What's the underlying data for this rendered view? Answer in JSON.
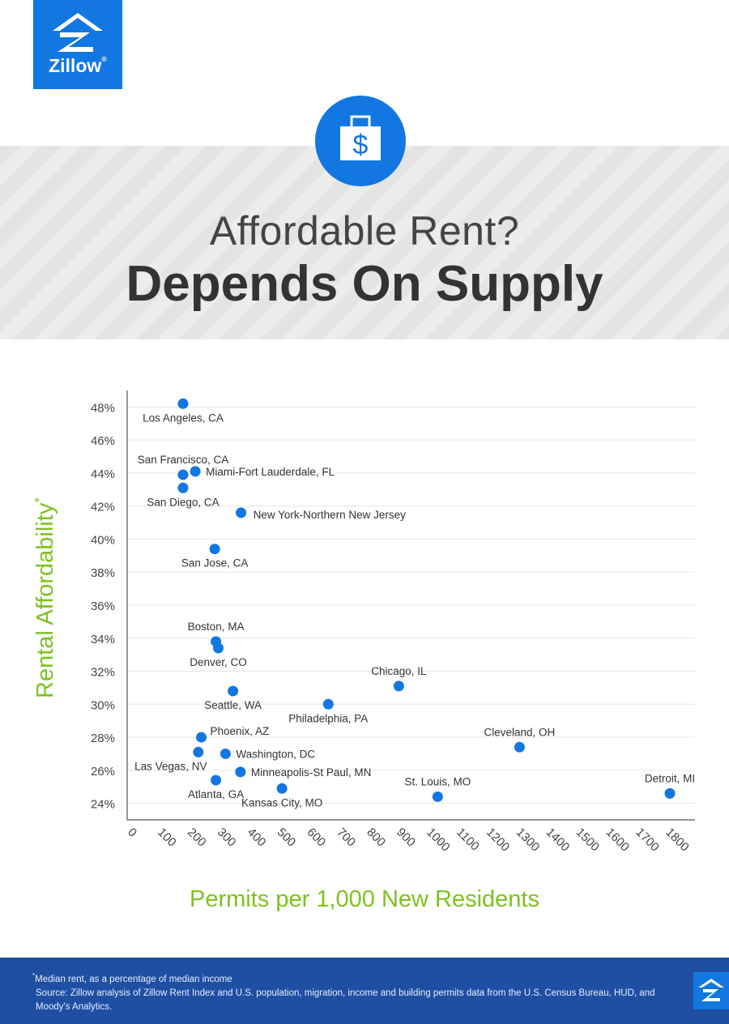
{
  "brand": {
    "name": "Zillow",
    "registered": "®",
    "color": "#1277e1"
  },
  "icons": [
    "zillow-logo-icon",
    "money-bag-icon",
    "dollar-sign-icon"
  ],
  "title_light": "Affordable Rent?",
  "title_bold": "Depends On Supply",
  "footer": {
    "footnote_mark": "*",
    "footnote": "Median rent, as a percentage of median income",
    "source": "Source: Zillow analysis of Zillow Rent Index and U.S. population, migration, income and building permits data from the U.S. Census Bureau, HUD, and Moody's Analytics."
  },
  "chart_data": {
    "type": "scatter",
    "xlabel": "Permits per 1,000 New Residents",
    "ylabel": "Rental Affordability",
    "ylabel_mark": "*",
    "xlim": [
      0,
      1900
    ],
    "ylim": [
      23,
      49
    ],
    "x_ticks": [
      "0",
      "100",
      "200",
      "300",
      "400",
      "500",
      "600",
      "700",
      "800",
      "900",
      "1000",
      "1100",
      "1200",
      "1300",
      "1400",
      "1500",
      "1600",
      "1700",
      "1800"
    ],
    "x_tick_values": [
      0,
      100,
      200,
      300,
      400,
      500,
      600,
      700,
      800,
      900,
      1000,
      1100,
      1200,
      1300,
      1400,
      1500,
      1600,
      1700,
      1800
    ],
    "y_ticks": [
      "24%",
      "26%",
      "28%",
      "30%",
      "32%",
      "34%",
      "36%",
      "38%",
      "40%",
      "42%",
      "44%",
      "46%",
      "48%"
    ],
    "y_tick_values": [
      24,
      26,
      28,
      30,
      32,
      34,
      36,
      38,
      40,
      42,
      44,
      46,
      48
    ],
    "grid": "horizontal",
    "point_color": "#1277e1",
    "points": [
      {
        "name": "Los Angeles, CA",
        "x": 187,
        "y": 48.2,
        "label_pos": "below"
      },
      {
        "name": "San Francisco, CA",
        "x": 187,
        "y": 43.9,
        "label_pos": "above"
      },
      {
        "name": "Miami-Fort Lauderdale, FL",
        "x": 228,
        "y": 44.1,
        "label_pos": "right"
      },
      {
        "name": "San Diego, CA",
        "x": 187,
        "y": 43.1,
        "label_pos": "below"
      },
      {
        "name": "New York-Northern New Jersey",
        "x": 381,
        "y": 41.6,
        "label_pos": "right-below"
      },
      {
        "name": "San Jose, CA",
        "x": 293,
        "y": 39.4,
        "label_pos": "below"
      },
      {
        "name": "Boston, MA",
        "x": 297,
        "y": 33.8,
        "label_pos": "above"
      },
      {
        "name": "Denver, CO",
        "x": 305,
        "y": 33.4,
        "label_pos": "below"
      },
      {
        "name": "Seattle, WA",
        "x": 354,
        "y": 30.8,
        "label_pos": "below"
      },
      {
        "name": "Philadelphia, PA",
        "x": 673,
        "y": 30.0,
        "label_pos": "below"
      },
      {
        "name": "Chicago, IL",
        "x": 909,
        "y": 31.1,
        "label_pos": "above"
      },
      {
        "name": "Phoenix, AZ",
        "x": 248,
        "y": 28.0,
        "label_pos": "right-above"
      },
      {
        "name": "Las Vegas, NV",
        "x": 238,
        "y": 27.1,
        "label_pos": "below-left"
      },
      {
        "name": "Washington, DC",
        "x": 329,
        "y": 27.0,
        "label_pos": "right"
      },
      {
        "name": "Minneapolis-St Paul, MN",
        "x": 379,
        "y": 25.9,
        "label_pos": "right"
      },
      {
        "name": "Atlanta, GA",
        "x": 297,
        "y": 25.4,
        "label_pos": "below"
      },
      {
        "name": "Kansas City, MO",
        "x": 518,
        "y": 24.9,
        "label_pos": "below"
      },
      {
        "name": "St. Louis, MO",
        "x": 1039,
        "y": 24.4,
        "label_pos": "above"
      },
      {
        "name": "Cleveland, OH",
        "x": 1313,
        "y": 27.4,
        "label_pos": "above"
      },
      {
        "name": "Detroit, MI",
        "x": 1816,
        "y": 24.6,
        "label_pos": "above"
      }
    ]
  }
}
